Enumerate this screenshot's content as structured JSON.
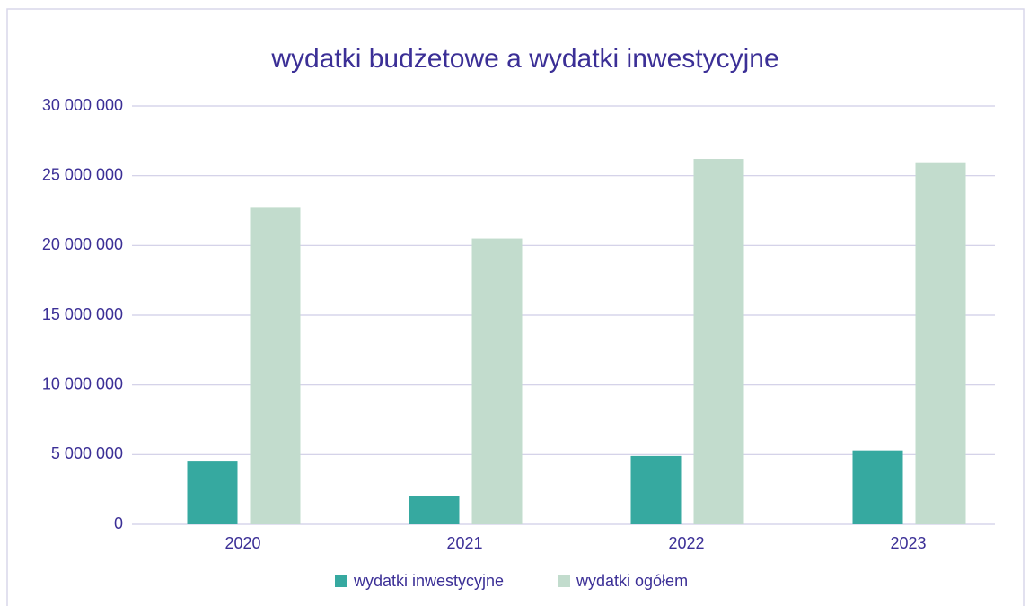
{
  "chart_data": {
    "type": "bar",
    "title": "wydatki budżetowe a wydatki inwestycyjne",
    "categories": [
      "2020",
      "2021",
      "2022",
      "2023"
    ],
    "series": [
      {
        "name": "wydatki inwestycyjne",
        "color": "#36a9a0",
        "values": [
          4500000,
          2000000,
          4900000,
          5300000
        ]
      },
      {
        "name": "wydatki ogółem",
        "color": "#c2dccd",
        "values": [
          22700000,
          20500000,
          26200000,
          25900000
        ]
      }
    ],
    "ylim": [
      0,
      30000000
    ],
    "yticks": [
      {
        "value": 0,
        "label": "0"
      },
      {
        "value": 5000000,
        "label": "5 000 000"
      },
      {
        "value": 10000000,
        "label": "10 000 000"
      },
      {
        "value": 15000000,
        "label": "15 000 000"
      },
      {
        "value": 20000000,
        "label": "20 000 000"
      },
      {
        "value": 25000000,
        "label": "25 000 000"
      },
      {
        "value": 30000000,
        "label": "30 000 000"
      }
    ],
    "grid": true,
    "legend": "bottom"
  }
}
